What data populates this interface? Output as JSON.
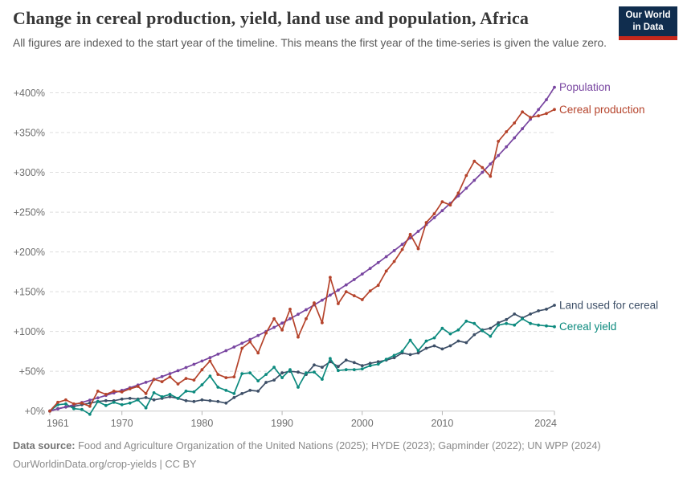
{
  "header": {
    "title": "Change in cereal production, yield, land use and population, Africa",
    "subtitle": "All figures are indexed to the start year of the timeline. This means the first year of the time-series is given the value zero.",
    "logo": {
      "line1": "Our World",
      "line2": "in Data"
    }
  },
  "footer": {
    "source_label": "Data source:",
    "source_text": "Food and Agriculture Organization of the United Nations (2025); HYDE (2023); Gapminder (2022); UN WPP (2024)",
    "citation": "OurWorldinData.org/crop-yields | CC BY"
  },
  "chart_data": {
    "type": "line",
    "title": "Change in cereal production, yield, land use and population, Africa",
    "xlabel": "",
    "ylabel": "",
    "grid": "dashed-horizontal",
    "legend_position": "right-of-line-ends",
    "x_ticks": [
      1961,
      1970,
      1980,
      1990,
      2000,
      2010,
      2024
    ],
    "y_ticks": [
      0,
      50,
      100,
      150,
      200,
      250,
      300,
      350,
      400
    ],
    "y_tick_prefix": "+",
    "y_tick_suffix": "%",
    "ylim": [
      -10,
      415
    ],
    "xlim": [
      1961,
      2024
    ],
    "x": [
      1961,
      1962,
      1963,
      1964,
      1965,
      1966,
      1967,
      1968,
      1969,
      1970,
      1971,
      1972,
      1973,
      1974,
      1975,
      1976,
      1977,
      1978,
      1979,
      1980,
      1981,
      1982,
      1983,
      1984,
      1985,
      1986,
      1987,
      1988,
      1989,
      1990,
      1991,
      1992,
      1993,
      1994,
      1995,
      1996,
      1997,
      1998,
      1999,
      2000,
      2001,
      2002,
      2003,
      2004,
      2005,
      2006,
      2007,
      2008,
      2009,
      2010,
      2011,
      2012,
      2013,
      2014,
      2015,
      2016,
      2017,
      2018,
      2019,
      2020,
      2021,
      2022,
      2023,
      2024
    ],
    "series": [
      {
        "name": "Population",
        "color": "#7845a0",
        "values": [
          0,
          2.6,
          5.3,
          8,
          10.8,
          13.7,
          16.6,
          19.7,
          22.8,
          26,
          29.3,
          32.7,
          36.1,
          39.6,
          43.3,
          47,
          50.8,
          54.7,
          58.8,
          62.9,
          67.1,
          71.5,
          75.9,
          80.5,
          85.2,
          90,
          95,
          100,
          105.2,
          110.6,
          116.1,
          121.7,
          127.4,
          133.4,
          139.4,
          145.7,
          152,
          158.6,
          165.3,
          172.2,
          179.3,
          186.6,
          194,
          201.7,
          209.5,
          217.6,
          225.8,
          234.3,
          243,
          251.9,
          261.1,
          270.4,
          280.1,
          290,
          300.1,
          310.5,
          321.2,
          332.1,
          343.4,
          354.9,
          366.7,
          378.9,
          391.3,
          407
        ]
      },
      {
        "name": "Cereal production",
        "color": "#b5432b",
        "values": [
          0,
          11,
          14,
          9,
          10,
          6,
          25,
          21,
          25,
          24,
          28,
          31,
          22,
          40,
          37,
          43,
          34,
          41,
          39,
          52,
          63,
          46,
          42,
          43,
          79,
          87,
          73,
          98,
          116,
          102,
          128,
          93,
          116,
          136,
          111,
          168,
          135,
          150,
          145,
          140,
          151,
          158,
          176,
          188,
          203,
          222,
          204,
          237,
          248,
          263,
          259,
          274,
          296,
          314,
          306,
          295,
          339,
          351,
          362,
          376,
          369,
          371,
          374,
          379
        ]
      },
      {
        "name": "Land used for cereal",
        "color": "#3d4f67",
        "values": [
          0,
          3,
          5,
          6,
          8,
          10,
          12,
          13,
          13,
          15,
          16,
          15,
          17,
          14,
          16,
          18,
          16,
          13,
          12,
          14,
          13,
          12,
          10,
          17,
          22,
          26,
          25,
          36,
          39,
          48,
          50,
          49,
          46,
          58,
          55,
          62,
          56,
          64,
          61,
          57,
          60,
          62,
          64,
          67,
          73,
          71,
          73,
          79,
          82,
          78,
          82,
          88,
          86,
          96,
          102,
          104,
          111,
          115,
          122,
          117,
          122,
          126,
          128,
          133
        ]
      },
      {
        "name": "Cereal yield",
        "color": "#0c8a7e",
        "values": [
          0,
          8,
          9,
          3,
          2,
          -4,
          12,
          7,
          11,
          8,
          10,
          14,
          4,
          23,
          18,
          21,
          16,
          25,
          24,
          33,
          44,
          30,
          26,
          22,
          47,
          48,
          38,
          46,
          55,
          42,
          52,
          30,
          48,
          49,
          40,
          66,
          51,
          52,
          52,
          53,
          57,
          59,
          65,
          70,
          75,
          89,
          76,
          88,
          92,
          104,
          97,
          102,
          113,
          110,
          101,
          94,
          108,
          110,
          108,
          116,
          110,
          108,
          107,
          106
        ]
      }
    ]
  }
}
